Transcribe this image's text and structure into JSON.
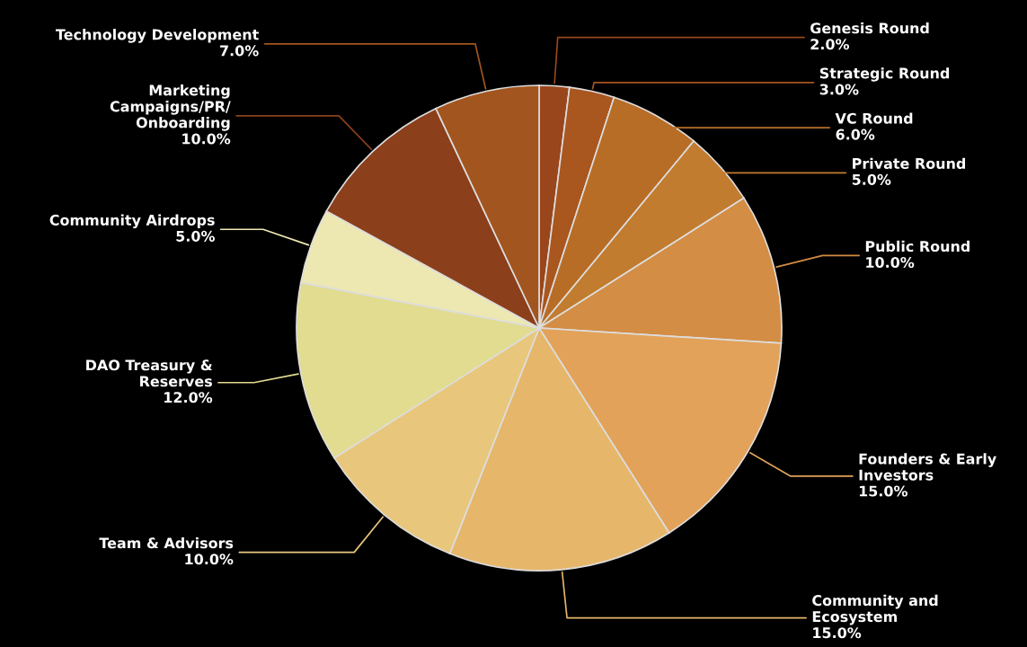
{
  "chart_data": {
    "type": "pie",
    "categories": [
      "Genesis Round",
      "Strategic Round",
      "VC Round",
      "Private Round",
      "Public Round",
      "Founders & Early\nInvestors",
      "Community and\nEcosystem",
      "Team & Advisors",
      "DAO Treasury &\nReserves",
      "Community Airdrops",
      "Marketing\nCampaigns/PR/\nOnboarding",
      "Technology Development"
    ],
    "values": [
      2,
      3,
      6,
      5,
      10,
      15,
      15,
      10,
      12,
      5,
      10,
      7
    ],
    "value_labels": [
      "2.0%",
      "3.0%",
      "6.0%",
      "5.0%",
      "10.0%",
      "15.0%",
      "15.0%",
      "10.0%",
      "12.0%",
      "5.0%",
      "10.0%",
      "7.0%"
    ],
    "colors": [
      "#9a461c",
      "#a9561f",
      "#b86d26",
      "#c27c2f",
      "#d38d44",
      "#e2a25a",
      "#e6b66a",
      "#e8c77c",
      "#e1dc90",
      "#ede7b2",
      "#8b3f1b",
      "#a2551f"
    ]
  }
}
